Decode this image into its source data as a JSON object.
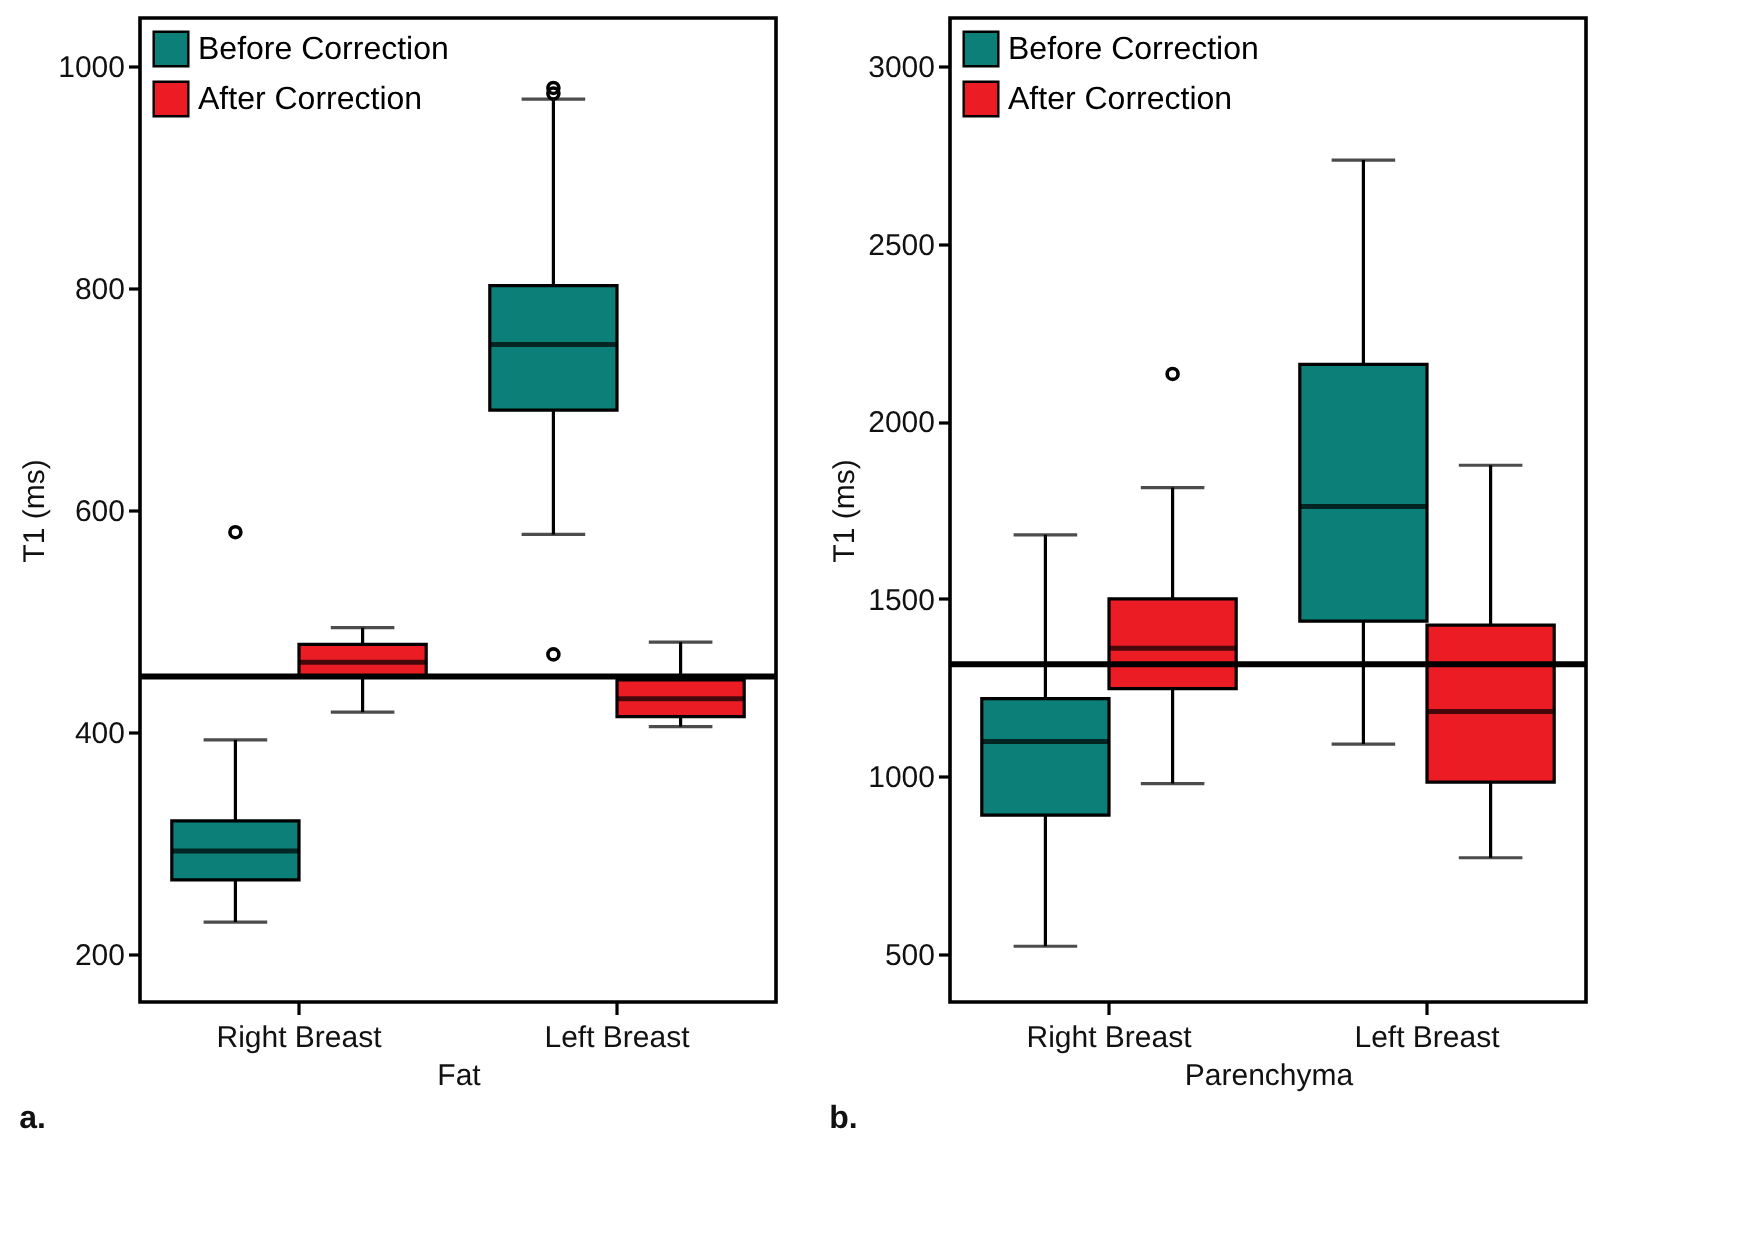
{
  "chart_data": [
    {
      "type": "box",
      "xlabel": "Fat",
      "ylabel": "T1 (ms)",
      "categories": [
        "Right Breast",
        "Left Breast"
      ],
      "ylim": [
        157,
        1043
      ],
      "yticks": [
        200,
        400,
        600,
        800,
        1000
      ],
      "legend": "top left",
      "annotations": [
        "a."
      ],
      "ref_lines": [
        {
          "axis": "y",
          "value": 450
        }
      ],
      "series": [
        {
          "name": "Before Correction",
          "color": "#0b7f78",
          "boxes": [
            {
              "low": 229,
              "q1": 267,
              "median": 293,
              "q3": 320,
              "high": 393,
              "outliers": [
                580
              ]
            },
            {
              "low": 578,
              "q1": 690,
              "median": 749,
              "q3": 802,
              "high": 970,
              "outliers": [
                470,
                975,
                980
              ]
            }
          ]
        },
        {
          "name": "After Correction",
          "color": "#ec1c24",
          "boxes": [
            {
              "low": 418,
              "q1": 450,
              "median": 463,
              "q3": 479,
              "high": 494
            },
            {
              "low": 405,
              "q1": 414,
              "median": 430,
              "q3": 447,
              "high": 481
            }
          ]
        }
      ]
    },
    {
      "type": "box",
      "xlabel": "Parenchyma",
      "ylabel": "T1 (ms)",
      "categories": [
        "Right Breast",
        "Left Breast"
      ],
      "ylim": [
        365,
        3135
      ],
      "yticks": [
        500,
        1000,
        1500,
        2000,
        2500,
        3000
      ],
      "legend": "top left",
      "annotations": [
        "b."
      ],
      "ref_lines": [
        {
          "axis": "y",
          "value": 1316
        }
      ],
      "series": [
        {
          "name": "Before Correction",
          "color": "#0b7f78",
          "boxes": [
            {
              "low": 522,
              "q1": 891,
              "median": 1098,
              "q3": 1219,
              "high": 1680
            },
            {
              "low": 1091,
              "q1": 1437,
              "median": 1760,
              "q3": 2160,
              "high": 2735
            }
          ]
        },
        {
          "name": "After Correction",
          "color": "#ec1c24",
          "boxes": [
            {
              "low": 980,
              "q1": 1247,
              "median": 1361,
              "q3": 1500,
              "high": 1813,
              "outliers": [
                2133
              ]
            },
            {
              "low": 771,
              "q1": 984,
              "median": 1183,
              "q3": 1426,
              "high": 1876
            }
          ]
        }
      ]
    }
  ]
}
